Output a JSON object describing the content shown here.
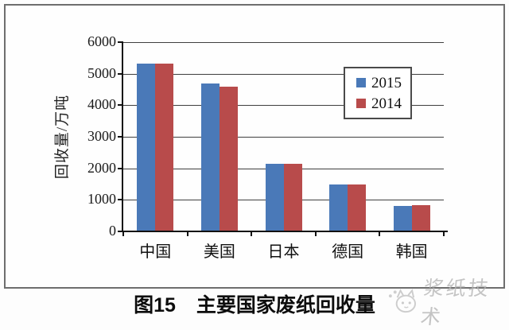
{
  "figure": {
    "caption_label": "图15",
    "caption_title": "主要国家废纸回收量"
  },
  "watermark": {
    "text": "浆纸技术",
    "icon": "cat-face-icon"
  },
  "chart_data": {
    "type": "bar",
    "title": "",
    "categories": [
      "中国",
      "美国",
      "日本",
      "德国",
      "韩国"
    ],
    "series": [
      {
        "name": "2015",
        "color": "#4a79b8",
        "values": [
          5330,
          4700,
          2150,
          1500,
          800
        ]
      },
      {
        "name": "2014",
        "color": "#b84b4b",
        "values": [
          5330,
          4600,
          2150,
          1500,
          840
        ]
      }
    ],
    "ylabel": "回收量/万吨",
    "xlabel": "",
    "ylim": [
      0,
      6000
    ],
    "yticks": [
      0,
      1000,
      2000,
      3000,
      4000,
      5000,
      6000
    ],
    "grid": "horizontal",
    "legend_position": "upper-right-inside"
  }
}
